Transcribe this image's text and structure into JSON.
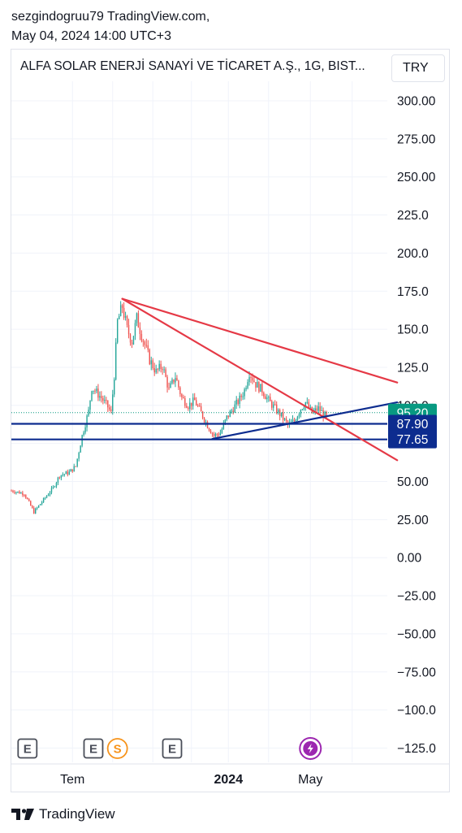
{
  "header": {
    "author_line": "sezgindogruu79 TradingView.com,",
    "date_line": "May 04, 2024 14:00 UTC+3"
  },
  "chart_header": {
    "symbol_title": "ALFA SOLAR ENERJİ SANAYİ VE TİCARET A.Ş., 1G, BIST...",
    "currency": "TRY"
  },
  "footer": {
    "brand": "TradingView"
  },
  "colors": {
    "bull": "#26a69a",
    "bear": "#ef5350",
    "trendline_red": "#e53946",
    "trendline_blue": "#0d2c8f",
    "last_price_badge": "#089981",
    "level_badge": "#0d2c8f",
    "grid": "#f0f3fa"
  },
  "chart_data": {
    "type": "candlestick",
    "title": "",
    "ylim": [
      -125,
      300
    ],
    "y_ticks": [
      "300.00",
      "275.00",
      "250.00",
      "225.0",
      "200.0",
      "175.0",
      "150.0",
      "125.0",
      "100.0",
      "75.00",
      "50.00",
      "25.00",
      "0.00",
      "−25.00",
      "−50.00",
      "−75.00",
      "−100.0",
      "−125.0"
    ],
    "x_labels": [
      {
        "label": "Tem",
        "idx": 38,
        "bold": false
      },
      {
        "label": "2024",
        "idx": 135,
        "bold": true
      },
      {
        "label": "May",
        "idx": 186,
        "bold": false
      }
    ],
    "last_price": {
      "value": 95.2,
      "label": "95.20"
    },
    "horizontal_levels": [
      {
        "value": 87.9,
        "label": "87.90"
      },
      {
        "value": 77.65,
        "label": "77.65"
      }
    ],
    "trendlines": [
      {
        "color": "red",
        "from": {
          "idx": 69,
          "price": 170
        },
        "to": {
          "idx": 240,
          "price": 115
        }
      },
      {
        "color": "red",
        "from": {
          "idx": 69,
          "price": 170
        },
        "to": {
          "idx": 240,
          "price": 64
        }
      },
      {
        "color": "blue",
        "from": {
          "idx": 125,
          "price": 78
        },
        "to": {
          "idx": 240,
          "price": 102
        }
      }
    ],
    "events": [
      {
        "type": "earnings",
        "label": "E",
        "idx": 10
      },
      {
        "type": "earnings",
        "label": "E",
        "idx": 51
      },
      {
        "type": "dividend",
        "label": "S",
        "idx": 66
      },
      {
        "type": "earnings",
        "label": "E",
        "idx": 100
      },
      {
        "type": "split",
        "label": "⚡",
        "idx": 186
      }
    ],
    "close_path": [
      [
        0,
        44
      ],
      [
        8,
        42
      ],
      [
        14,
        30
      ],
      [
        20,
        38
      ],
      [
        26,
        46
      ],
      [
        30,
        54
      ],
      [
        36,
        56
      ],
      [
        40,
        60
      ],
      [
        44,
        80
      ],
      [
        48,
        96
      ],
      [
        50,
        112
      ],
      [
        56,
        105
      ],
      [
        60,
        99
      ],
      [
        62,
        95
      ],
      [
        64,
        120
      ],
      [
        66,
        155
      ],
      [
        69,
        165
      ],
      [
        72,
        150
      ],
      [
        75,
        142
      ],
      [
        78,
        157
      ],
      [
        82,
        143
      ],
      [
        86,
        130
      ],
      [
        90,
        122
      ],
      [
        94,
        126
      ],
      [
        98,
        110
      ],
      [
        102,
        119
      ],
      [
        106,
        105
      ],
      [
        110,
        100
      ],
      [
        114,
        103
      ],
      [
        118,
        95
      ],
      [
        122,
        87
      ],
      [
        126,
        80
      ],
      [
        130,
        82
      ],
      [
        134,
        92
      ],
      [
        138,
        98
      ],
      [
        142,
        104
      ],
      [
        145,
        110
      ],
      [
        148,
        122
      ],
      [
        152,
        114
      ],
      [
        156,
        110
      ],
      [
        160,
        103
      ],
      [
        164,
        98
      ],
      [
        168,
        93
      ],
      [
        172,
        87
      ],
      [
        176,
        90
      ],
      [
        180,
        98
      ],
      [
        183,
        102
      ],
      [
        187,
        95
      ],
      [
        191,
        98
      ],
      [
        196,
        92
      ]
    ]
  }
}
